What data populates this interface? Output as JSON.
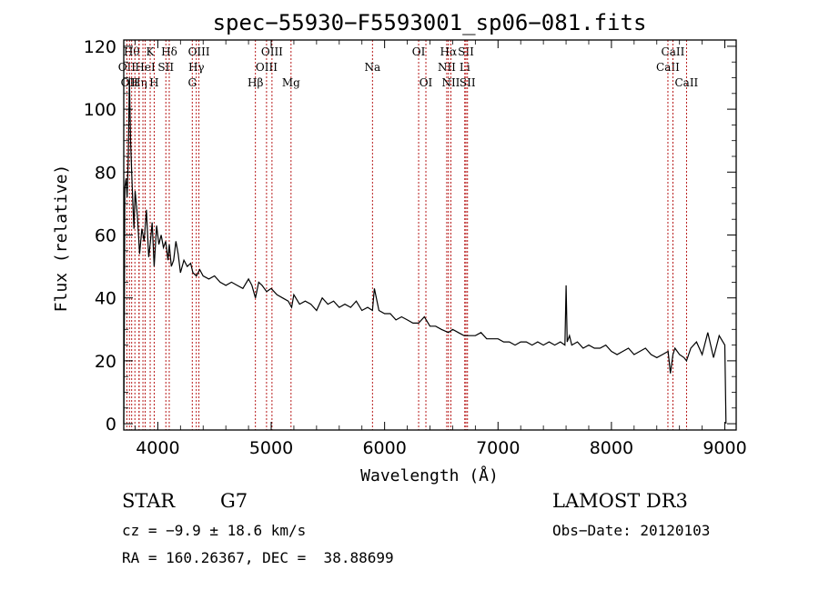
{
  "chart_data": {
    "type": "line",
    "title": "spec−55930−F5593001_sp06−081.fits",
    "xlabel": "Wavelength (Å)",
    "ylabel": "Flux (relative)",
    "xlim": [
      3700,
      9100
    ],
    "ylim": [
      -2,
      122
    ],
    "x_ticks": [
      4000,
      5000,
      6000,
      7000,
      8000,
      9000
    ],
    "y_ticks": [
      0,
      20,
      40,
      60,
      80,
      100,
      120
    ],
    "series": [
      {
        "name": "flux",
        "x": [
          3700,
          3705,
          3710,
          3720,
          3730,
          3740,
          3750,
          3760,
          3770,
          3780,
          3790,
          3800,
          3820,
          3840,
          3860,
          3880,
          3900,
          3920,
          3933,
          3950,
          3968,
          3990,
          4010,
          4030,
          4050,
          4070,
          4090,
          4101,
          4120,
          4140,
          4160,
          4180,
          4200,
          4230,
          4260,
          4290,
          4310,
          4340,
          4370,
          4400,
          4450,
          4500,
          4550,
          4600,
          4650,
          4700,
          4750,
          4800,
          4830,
          4861,
          4890,
          4920,
          4960,
          5000,
          5050,
          5100,
          5150,
          5180,
          5200,
          5250,
          5300,
          5350,
          5400,
          5450,
          5500,
          5550,
          5600,
          5650,
          5700,
          5750,
          5800,
          5850,
          5893,
          5910,
          5950,
          6000,
          6050,
          6100,
          6150,
          6200,
          6250,
          6300,
          6350,
          6400,
          6450,
          6500,
          6563,
          6600,
          6650,
          6700,
          6750,
          6800,
          6850,
          6900,
          6950,
          7000,
          7050,
          7100,
          7150,
          7200,
          7250,
          7300,
          7350,
          7400,
          7450,
          7500,
          7550,
          7590,
          7600,
          7610,
          7630,
          7650,
          7700,
          7750,
          7800,
          7850,
          7900,
          7950,
          8000,
          8050,
          8100,
          8150,
          8200,
          8250,
          8300,
          8350,
          8400,
          8450,
          8500,
          8520,
          8542,
          8560,
          8600,
          8640,
          8662,
          8700,
          8750,
          8800,
          8850,
          8900,
          8950,
          9000,
          9010
        ],
        "values": [
          0,
          30,
          75,
          78,
          72,
          85,
          110,
          90,
          80,
          70,
          62,
          74,
          66,
          54,
          62,
          58,
          68,
          53,
          57,
          64,
          50,
          63,
          57,
          60,
          56,
          58,
          52,
          57,
          50,
          52,
          58,
          54,
          48,
          52,
          50,
          51,
          48,
          47,
          49,
          47,
          46,
          47,
          45,
          44,
          45,
          44,
          43,
          46,
          44,
          40,
          45,
          44,
          42,
          43,
          41,
          40,
          39,
          37,
          41,
          38,
          39,
          38,
          36,
          40,
          38,
          39,
          37,
          38,
          37,
          39,
          36,
          37,
          36,
          43,
          36,
          35,
          35,
          33,
          34,
          33,
          32,
          32,
          34,
          31,
          31,
          30,
          29,
          30,
          29,
          28,
          28,
          28,
          29,
          27,
          27,
          27,
          26,
          26,
          25,
          26,
          26,
          25,
          26,
          25,
          26,
          25,
          26,
          25,
          44,
          26,
          28,
          25,
          26,
          24,
          25,
          24,
          24,
          25,
          23,
          22,
          23,
          24,
          22,
          23,
          24,
          22,
          21,
          22,
          23,
          16,
          22,
          24,
          22,
          21,
          20,
          24,
          26,
          22,
          29,
          21,
          28,
          25,
          0
        ]
      }
    ],
    "line_markers": [
      {
        "w": 3727,
        "label": "OII",
        "row": 1
      },
      {
        "w": 3750,
        "label": "OII",
        "row": 2
      },
      {
        "w": 3770,
        "label": "Hθ",
        "row": 0
      },
      {
        "w": 3798,
        "label": "",
        "row": 0
      },
      {
        "w": 3835,
        "label": "Hη",
        "row": 2
      },
      {
        "w": 3835,
        "label": "",
        "row": 0
      },
      {
        "w": 3869,
        "label": "",
        "row": 0
      },
      {
        "w": 3889,
        "label": "HeI",
        "row": 1
      },
      {
        "w": 3933,
        "label": "K",
        "row": 0
      },
      {
        "w": 3968,
        "label": "H",
        "row": 2
      },
      {
        "w": 4071,
        "label": "SII",
        "row": 1
      },
      {
        "w": 4101,
        "label": "Hδ",
        "row": 0
      },
      {
        "w": 4304,
        "label": "G",
        "row": 2
      },
      {
        "w": 4340,
        "label": "Hγ",
        "row": 1
      },
      {
        "w": 4363,
        "label": "OIII",
        "row": 0
      },
      {
        "w": 4861,
        "label": "Hβ",
        "row": 2
      },
      {
        "w": 4959,
        "label": "OIII",
        "row": 1
      },
      {
        "w": 5007,
        "label": "OIII",
        "row": 0
      },
      {
        "w": 5175,
        "label": "Mg",
        "row": 2
      },
      {
        "w": 5893,
        "label": "Na",
        "row": 1
      },
      {
        "w": 6300,
        "label": "OI",
        "row": 0
      },
      {
        "w": 6364,
        "label": "OI",
        "row": 2
      },
      {
        "w": 6548,
        "label": "NII",
        "row": 1
      },
      {
        "w": 6563,
        "label": "Hα",
        "row": 0
      },
      {
        "w": 6584,
        "label": "NII",
        "row": 2
      },
      {
        "w": 6707,
        "label": "Li",
        "row": 1
      },
      {
        "w": 6717,
        "label": "SII",
        "row": 0
      },
      {
        "w": 6731,
        "label": "SII",
        "row": 2
      },
      {
        "w": 8498,
        "label": "CaII",
        "row": 1
      },
      {
        "w": 8542,
        "label": "CaII",
        "row": 0
      },
      {
        "w": 8662,
        "label": "CaII",
        "row": 2
      }
    ]
  },
  "info": {
    "object_class": "STAR",
    "subclass": "G7",
    "survey": "LAMOST DR3",
    "redshift": "cz = −9.9 ± 18.6 km/s",
    "obs_date": "Obs−Date: 20120103",
    "coords": "RA = 160.26367, DEC =  38.88699"
  }
}
